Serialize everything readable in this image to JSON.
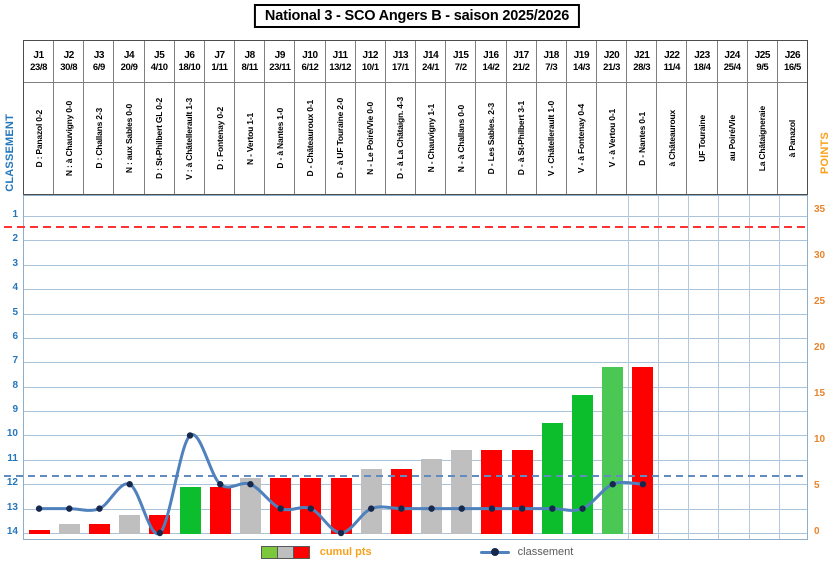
{
  "title": "National 3 - SCO Angers B - saison 2025/2026",
  "left_axis_title": "CLASSEMENT",
  "right_axis_title": "POINTS",
  "legend": {
    "bars_label": "cumul pts",
    "line_label": "classement"
  },
  "chart_data": {
    "type": "bar+line combo",
    "categories": [
      "J1",
      "J2",
      "J3",
      "J4",
      "J5",
      "J6",
      "J7",
      "J8",
      "J9",
      "J10",
      "J11",
      "J12",
      "J13",
      "J14",
      "J15",
      "J16",
      "J17",
      "J18",
      "J19",
      "J20",
      "J21",
      "J22",
      "J23",
      "J24",
      "J25",
      "J26"
    ],
    "dates": [
      "23/8",
      "30/8",
      "6/9",
      "20/9",
      "4/10",
      "18/10",
      "1/11",
      "8/11",
      "23/11",
      "6/12",
      "13/12",
      "10/1",
      "17/1",
      "24/1",
      "7/2",
      "14/2",
      "21/2",
      "7/3",
      "14/3",
      "21/3",
      "28/3",
      "11/4",
      "18/4",
      "25/4",
      "9/5",
      "16/5"
    ],
    "match_labels": [
      "D : Panazol 0-2",
      "N : à Chauvigny 0-0",
      "D : Challans 2-3",
      "N : aux Sables 0-0",
      "D : St-Philbert GL 0-2",
      "V : à Châtellerault 1-3",
      "D : Fontenay 0-2",
      "N - Vertou 1-1",
      "D - à Nantes 1-0",
      "D - Châteauroux 0-1",
      "D - à UF Touraine 2-0",
      "N - Le Poiré/Vie 0-0",
      "D - à La Châtaign. 4-3",
      "N - Chauvigny 1-1",
      "N - à Challans 0-0",
      "D - Les Sables. 2-3",
      "D - à St-Philbert 3-1",
      "V - Châtellerault 1-0",
      "V - à Fontenay 0-4",
      "V - à Vertou 0-1",
      "D - Nantes 0-1",
      "à Châteauroux",
      "UF Touraine",
      "au Poiré/Vie",
      "La Châtaigneraie",
      "à Panazol"
    ],
    "results": [
      "D",
      "N",
      "D",
      "N",
      "D",
      "V",
      "D",
      "N",
      "D",
      "D",
      "D",
      "N",
      "D",
      "N",
      "N",
      "D",
      "D",
      "V",
      "V",
      "V",
      "D",
      "",
      "",
      "",
      "",
      ""
    ],
    "series": [
      {
        "name": "cumul pts",
        "type": "bar",
        "axis": "right",
        "values": [
          0,
          1,
          1,
          2,
          2,
          5,
          5,
          6,
          6,
          6,
          6,
          7,
          7,
          8,
          9,
          9,
          9,
          12,
          15,
          18,
          18
        ]
      },
      {
        "name": "classement",
        "type": "line",
        "axis": "left",
        "values": [
          13,
          13,
          13,
          12,
          14,
          10,
          12,
          12,
          13,
          13,
          14,
          13,
          13,
          13,
          13,
          13,
          13,
          13,
          13,
          12,
          12
        ]
      }
    ],
    "left_axis": {
      "label": "CLASSEMENT",
      "min": 1,
      "max": 14,
      "tick_step": 1,
      "inverted": true
    },
    "right_axis": {
      "label": "POINTS",
      "min": 0,
      "max": 35,
      "tick_step": 5
    },
    "reference_lines": [
      {
        "axis": "left",
        "value": 1.5,
        "style": "dashed",
        "color": "#ff3333"
      },
      {
        "axis": "left",
        "value": 11.7,
        "style": "dashed",
        "color": "#628cc0"
      }
    ],
    "bar_colors": [
      "#fe0000",
      "#bfbfbf",
      "#fe0000",
      "#bfbfbf",
      "#fe0000",
      "#0cbe2b",
      "#fe0000",
      "#bfbfbf",
      "#fe0000",
      "#fe0000",
      "#fe0000",
      "#bfbfbf",
      "#fe0000",
      "#bfbfbf",
      "#bfbfbf",
      "#fe0000",
      "#fe0000",
      "#0cbe2b",
      "#0cbe2b",
      "#4bc854",
      "#fe0000"
    ],
    "grid": true,
    "legend_position": "bottom"
  },
  "colors": {
    "line": "#4f81bd",
    "marker": "#16294d",
    "gridline": "#a9c4db",
    "left_axis_text": "#2577bc",
    "right_axis_text": "#e8842b",
    "points_title": "#f9a21c",
    "legend_swatches": [
      "#7cc83c",
      "#bfbfbf",
      "#fe0000"
    ]
  }
}
